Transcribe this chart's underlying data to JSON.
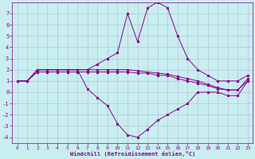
{
  "xlabel": "Windchill (Refroidissement éolien,°C)",
  "ylabel": "",
  "background_color": "#c8eef0",
  "grid_color": "#b0b8d0",
  "line_color": "#880088",
  "x": [
    0,
    1,
    2,
    3,
    4,
    5,
    6,
    7,
    8,
    9,
    10,
    11,
    12,
    13,
    14,
    15,
    16,
    17,
    18,
    19,
    20,
    21,
    22,
    23
  ],
  "line_main": [
    1,
    1,
    2,
    2,
    2,
    2,
    2,
    0.3,
    -0.5,
    -1.2,
    -2.8,
    -3.8,
    -4,
    -3.3,
    -2.5,
    -2,
    -1.5,
    -1,
    0,
    0,
    0,
    -0.3,
    -0.3,
    1
  ],
  "line_high": [
    1,
    1,
    2,
    2,
    2,
    2,
    2,
    2,
    2.5,
    3,
    3.5,
    7,
    4.5,
    7.5,
    8,
    7.5,
    5,
    3,
    2,
    1.5,
    1,
    1,
    1,
    1.5
  ],
  "line_mid1": [
    1,
    1,
    1.8,
    1.8,
    1.8,
    1.8,
    1.8,
    1.8,
    1.8,
    1.8,
    1.8,
    1.8,
    1.7,
    1.7,
    1.5,
    1.5,
    1.2,
    1.0,
    0.8,
    0.6,
    0.3,
    0.2,
    0.2,
    1
  ],
  "line_mid2": [
    1,
    1,
    2,
    2,
    2,
    2,
    2,
    2,
    2,
    2,
    2,
    2,
    1.9,
    1.8,
    1.7,
    1.6,
    1.4,
    1.2,
    1.0,
    0.7,
    0.4,
    0.2,
    0.2,
    1.2
  ],
  "xlim": [
    -0.5,
    23.5
  ],
  "ylim": [
    -4.5,
    8.0
  ],
  "xticks": [
    0,
    1,
    2,
    3,
    4,
    5,
    6,
    7,
    8,
    9,
    10,
    11,
    12,
    13,
    14,
    15,
    16,
    17,
    18,
    19,
    20,
    21,
    22,
    23
  ],
  "yticks": [
    -4,
    -3,
    -2,
    -1,
    0,
    1,
    2,
    3,
    4,
    5,
    6,
    7
  ],
  "figsize": [
    3.2,
    2.0
  ],
  "dpi": 100
}
